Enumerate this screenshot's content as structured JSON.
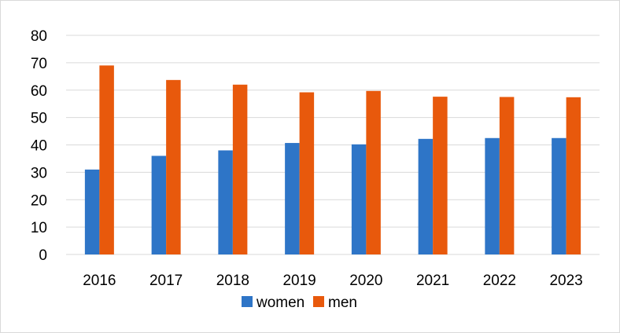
{
  "chart_data": {
    "type": "bar",
    "title": "",
    "xlabel": "",
    "ylabel": "",
    "categories": [
      "2016",
      "2017",
      "2018",
      "2019",
      "2020",
      "2021",
      "2022",
      "2023"
    ],
    "series": [
      {
        "name": "women",
        "color": "#2e75c7",
        "values": [
          31,
          36,
          38,
          40.7,
          40.2,
          42.2,
          42.5,
          42.5
        ]
      },
      {
        "name": "men",
        "color": "#e8590c",
        "values": [
          69,
          63.7,
          62,
          59.2,
          59.7,
          57.6,
          57.5,
          57.4
        ]
      }
    ],
    "ylim": [
      0,
      80
    ],
    "yticks": [
      "0",
      "10",
      "20",
      "30",
      "40",
      "50",
      "60",
      "70",
      "80"
    ],
    "grid": true,
    "legend": "bottom"
  }
}
